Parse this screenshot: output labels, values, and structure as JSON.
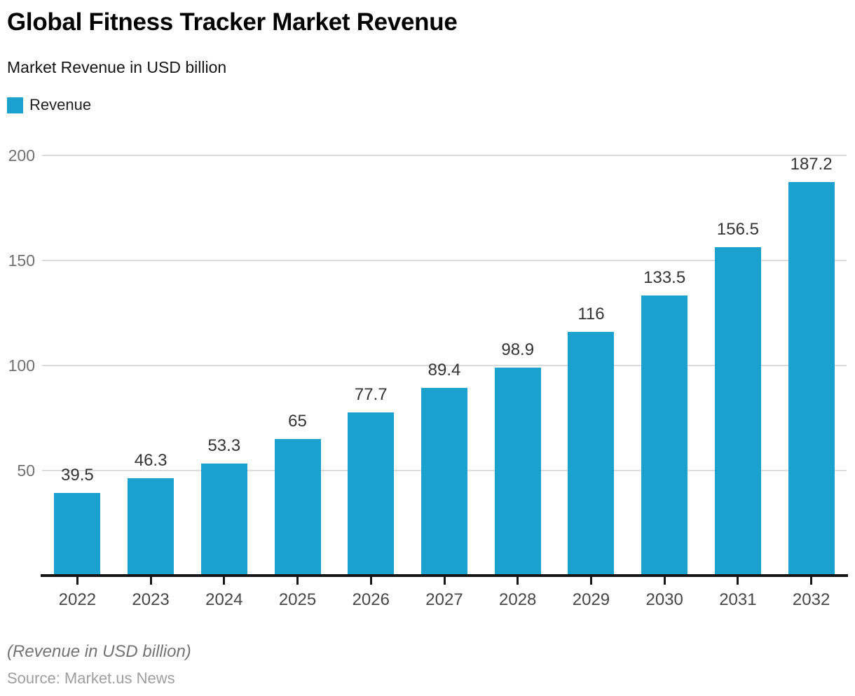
{
  "chart_data": {
    "type": "bar",
    "title": "Global Fitness Tracker Market Revenue",
    "subtitle": "Market Revenue in USD billion",
    "categories": [
      "2022",
      "2023",
      "2024",
      "2025",
      "2026",
      "2027",
      "2028",
      "2029",
      "2030",
      "2031",
      "2032"
    ],
    "series": [
      {
        "name": "Revenue",
        "color": "#1BA1CE",
        "values": [
          39.5,
          46.3,
          53.3,
          65,
          77.7,
          89.4,
          98.9,
          116,
          133.5,
          156.5,
          187.2
        ]
      }
    ],
    "xlabel": "",
    "ylabel": "",
    "ylim": [
      0,
      200
    ],
    "yticks": [
      50,
      100,
      150,
      200
    ],
    "grid": true,
    "legend_position": "top-left",
    "value_labels": "above-bars"
  },
  "footer": {
    "note": "(Revenue in USD billion)",
    "source": "Source: Market.us News"
  },
  "colors": {
    "accent": "#1BA1CE",
    "gridline": "#dbdbdb",
    "axis": "#161616"
  }
}
